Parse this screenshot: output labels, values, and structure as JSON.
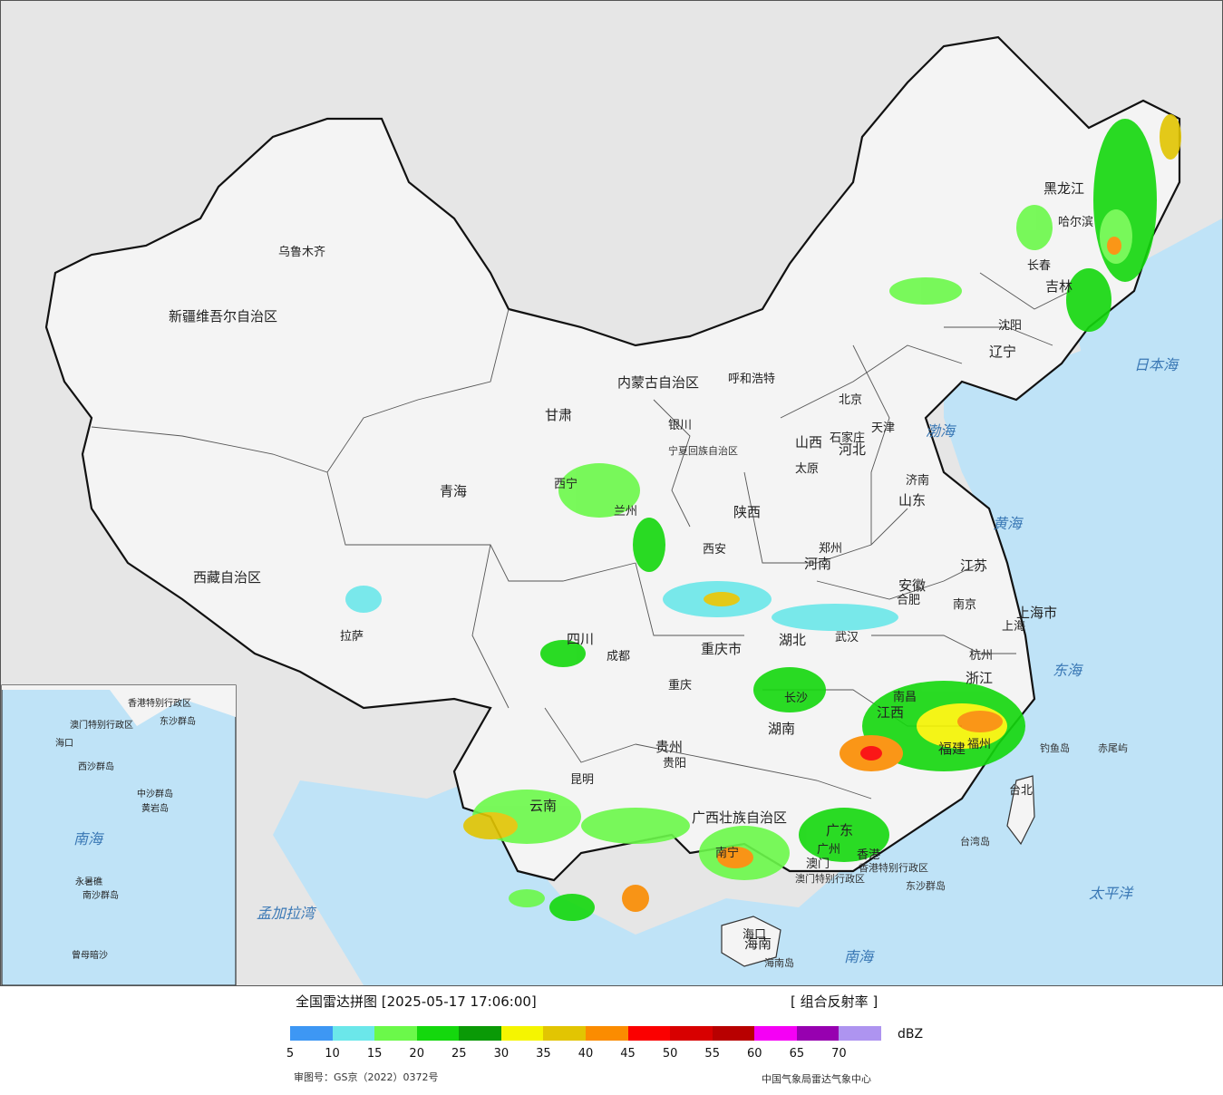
{
  "map": {
    "provinces": [
      {
        "name": "新疆维吾尔自治区"
      },
      {
        "name": "西藏自治区"
      },
      {
        "name": "青海"
      },
      {
        "name": "甘肃"
      },
      {
        "name": "内蒙古自治区"
      },
      {
        "name": "四川"
      },
      {
        "name": "云南"
      },
      {
        "name": "贵州"
      },
      {
        "name": "陕西"
      },
      {
        "name": "山西"
      },
      {
        "name": "河南"
      },
      {
        "name": "河北"
      },
      {
        "name": "山东"
      },
      {
        "name": "湖北"
      },
      {
        "name": "湖南"
      },
      {
        "name": "江西"
      },
      {
        "name": "安徽"
      },
      {
        "name": "江苏"
      },
      {
        "name": "浙江"
      },
      {
        "name": "福建"
      },
      {
        "name": "广东"
      },
      {
        "name": "广西壮族自治区"
      },
      {
        "name": "海南"
      },
      {
        "name": "黑龙江"
      },
      {
        "name": "吉林"
      },
      {
        "name": "辽宁"
      },
      {
        "name": "宁夏回族自治区"
      },
      {
        "name": "重庆市"
      },
      {
        "name": "上海市"
      },
      {
        "name": "香港特别行政区"
      },
      {
        "name": "澳门特别行政区"
      }
    ],
    "cities": [
      "乌鲁木齐",
      "拉萨",
      "西宁",
      "兰州",
      "银川",
      "呼和浩特",
      "北京",
      "天津",
      "石家庄",
      "太原",
      "济南",
      "郑州",
      "西安",
      "成都",
      "重庆",
      "贵阳",
      "昆明",
      "长沙",
      "武汉",
      "合肥",
      "南京",
      "上海",
      "杭州",
      "南昌",
      "福州",
      "台北",
      "广州",
      "香港",
      "澳门",
      "南宁",
      "海口",
      "沈阳",
      "长春",
      "哈尔滨"
    ],
    "islands": [
      "钓鱼岛",
      "赤尾屿",
      "台湾岛",
      "东沙群岛",
      "海南岛"
    ],
    "seas": [
      "渤海",
      "黄海",
      "东海",
      "南海",
      "日本海",
      "太平洋",
      "孟加拉湾"
    ],
    "inset": {
      "labels": [
        "南海",
        "东沙群岛",
        "西沙群岛",
        "中沙群岛",
        "黄岩岛",
        "南沙群岛",
        "永暑礁",
        "曾母暗沙",
        "海口",
        "香港特别行政区",
        "澳门特别行政区"
      ]
    }
  },
  "legend": {
    "title": "全国雷达拼图 [2025-05-17 17:06:00]",
    "product": "[ 组合反射率 ]",
    "unit": "dBZ",
    "ticks": [
      "5",
      "10",
      "15",
      "20",
      "25",
      "30",
      "35",
      "40",
      "45",
      "50",
      "55",
      "60",
      "65",
      "70"
    ],
    "colors": [
      "#3d97f4",
      "#6be7ea",
      "#6bf94a",
      "#14d80d",
      "#0a9a06",
      "#f5f500",
      "#e2c502",
      "#fb8c00",
      "#fb0000",
      "#d80000",
      "#b80000",
      "#f500f5",
      "#9700b0",
      "#ae94f0"
    ],
    "review_number": "审图号：GS京（2022）0372号",
    "agency": "中国气象局雷达气象中心"
  }
}
